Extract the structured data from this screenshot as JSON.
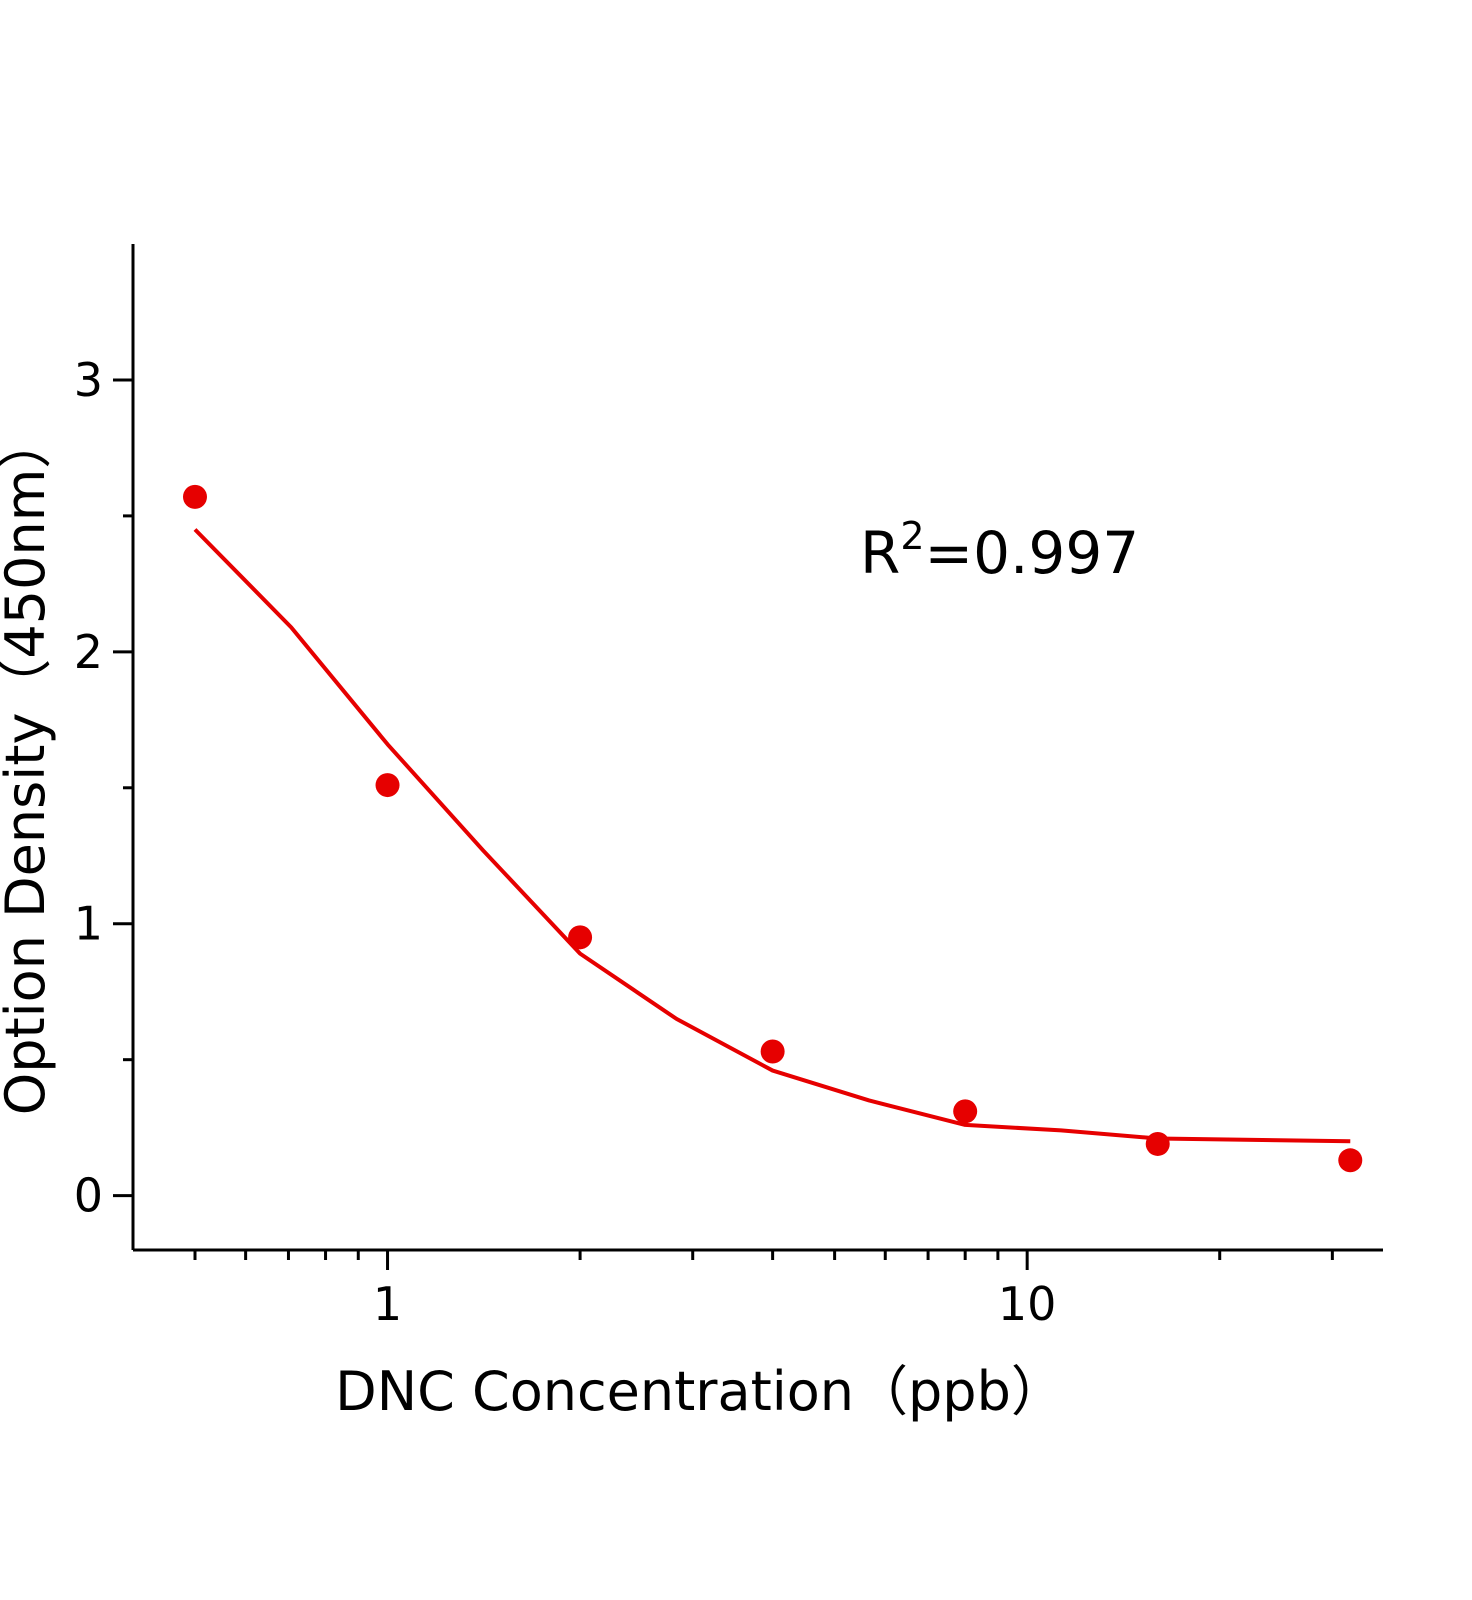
{
  "chart_data": {
    "type": "scatter",
    "xlabel": "DNC Concentration（ppb）",
    "ylabel": "Option Density（450nm）",
    "annotation": [
      "R",
      "2",
      "=0.997"
    ],
    "xscale": "log",
    "xlim": [
      0.4,
      36
    ],
    "ylim": [
      -0.2,
      3.5
    ],
    "xticks": [
      1,
      10
    ],
    "xminor_ticks": [
      0.5,
      0.6,
      0.7,
      0.8,
      0.9,
      2,
      3,
      4,
      5,
      6,
      7,
      8,
      9,
      20,
      30
    ],
    "yticks": [
      0,
      1,
      2,
      3
    ],
    "yminor_ticks": [
      0.5,
      1.5,
      2.5
    ],
    "series": [
      {
        "kind": "markers",
        "color": "#e60000",
        "x": [
          0.5,
          1,
          2,
          4,
          8,
          16,
          32
        ],
        "values": [
          2.57,
          1.51,
          0.95,
          0.53,
          0.31,
          0.19,
          0.13
        ]
      },
      {
        "kind": "line",
        "color": "#e60000",
        "x": [
          0.5,
          0.707,
          1,
          1.41,
          2,
          2.83,
          4,
          5.66,
          8,
          11.3,
          16,
          22.6,
          32
        ],
        "values": [
          2.45,
          2.09,
          1.66,
          1.27,
          0.89,
          0.65,
          0.46,
          0.35,
          0.26,
          0.24,
          0.21,
          0.205,
          0.2
        ]
      }
    ]
  }
}
